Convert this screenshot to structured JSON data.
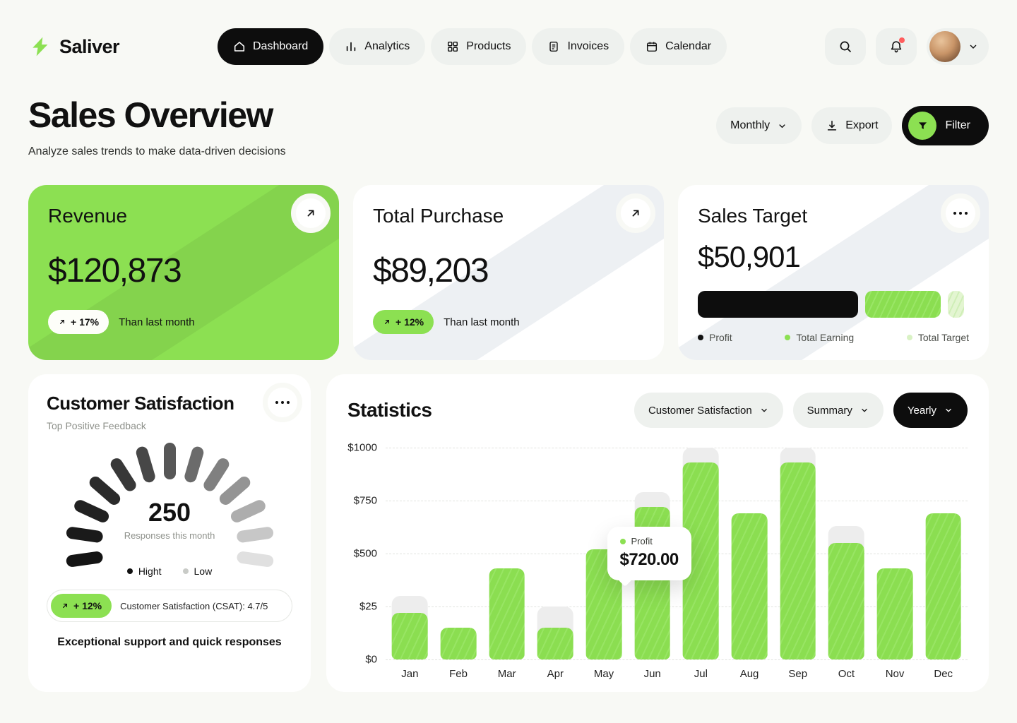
{
  "brand": {
    "name": "Saliver"
  },
  "nav": {
    "items": [
      {
        "label": "Dashboard",
        "icon": "home-icon"
      },
      {
        "label": "Analytics",
        "icon": "analytics-icon"
      },
      {
        "label": "Products",
        "icon": "products-icon"
      },
      {
        "label": "Invoices",
        "icon": "invoices-icon"
      },
      {
        "label": "Calendar",
        "icon": "calendar-icon"
      }
    ]
  },
  "header": {
    "title": "Sales Overview",
    "subtitle": "Analyze sales trends to make data-driven decisions",
    "period_label": "Monthly",
    "export_label": "Export",
    "filter_label": "Filter"
  },
  "cards": {
    "revenue": {
      "title": "Revenue",
      "value": "$120,873",
      "delta": "+ 17%",
      "delta_note": "Than last month"
    },
    "total_purchase": {
      "title": "Total Purchase",
      "value": "$89,203",
      "delta": "+ 12%",
      "delta_note": "Than last month"
    },
    "sales_target": {
      "title": "Sales Target",
      "value": "$50,901",
      "progress": [
        {
          "name": "Profit",
          "pct": 59,
          "style": "solid-black"
        },
        {
          "name": "Total Earning",
          "pct": 28,
          "style": "hatched-green"
        },
        {
          "name": "Total Target",
          "pct": 6,
          "style": "hatched-light-green"
        }
      ],
      "legend": [
        {
          "label": "Profit",
          "color": "#111111"
        },
        {
          "label": "Total Earning",
          "color": "#8CE052"
        },
        {
          "label": "Total Target",
          "color": "#D9F2C4"
        }
      ]
    }
  },
  "satisfaction": {
    "title": "Customer Satisfaction",
    "subtitle": "Top Positive Feedback",
    "gauge": {
      "value": "250",
      "caption": "Responses this month",
      "segments": 13
    },
    "legend": [
      {
        "label": "Hight",
        "color": "#111111"
      },
      {
        "label": "Low",
        "color": "#c9cbc7"
      }
    ],
    "delta": "+ 12%",
    "csat_label": "Customer Satisfaction (CSAT): 4.7/5",
    "footer": "Exceptional support and quick responses"
  },
  "statistics": {
    "title": "Statistics",
    "filters": [
      {
        "label": "Customer Satisfaction"
      },
      {
        "label": "Summary"
      },
      {
        "label": "Yearly"
      }
    ],
    "tooltip": {
      "label": "Profit",
      "value": "$720.00",
      "month": "Jun"
    },
    "chart_data": {
      "type": "bar",
      "title": "Statistics",
      "categories": [
        "Jan",
        "Feb",
        "Mar",
        "Apr",
        "May",
        "Jun",
        "Jul",
        "Aug",
        "Sep",
        "Oct",
        "Nov",
        "Dec"
      ],
      "series": [
        {
          "name": "Profit",
          "values": [
            220,
            150,
            430,
            150,
            520,
            720,
            930,
            690,
            930,
            550,
            430,
            690
          ]
        },
        {
          "name": "Target Background",
          "values": [
            300,
            0,
            0,
            250,
            0,
            790,
            1000,
            0,
            1000,
            630,
            0,
            0
          ]
        }
      ],
      "y_tick_labels": [
        "$1000",
        "$750",
        "$500",
        "$25",
        "$0"
      ],
      "ylim": [
        0,
        1000
      ],
      "xlabel": "",
      "ylabel": "",
      "grid": "horizontal-dashed",
      "legend_position": "none"
    }
  }
}
